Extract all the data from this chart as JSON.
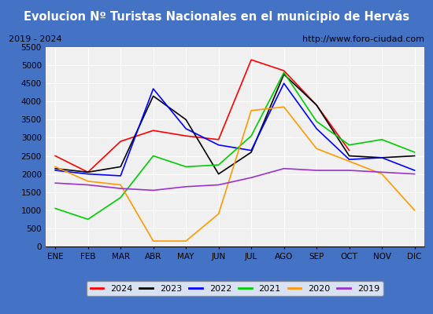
{
  "title": "Evolucion Nº Turistas Nacionales en el municipio de Hervás",
  "subtitle_left": "2019 - 2024",
  "subtitle_right": "http://www.foro-ciudad.com",
  "months": [
    "ENE",
    "FEB",
    "MAR",
    "ABR",
    "MAY",
    "JUN",
    "JUL",
    "AGO",
    "SEP",
    "OCT",
    "NOV",
    "DIC"
  ],
  "ylim": [
    0,
    5500
  ],
  "yticks": [
    0,
    500,
    1000,
    1500,
    2000,
    2500,
    3000,
    3500,
    4000,
    4500,
    5000,
    5500
  ],
  "series": {
    "2024": {
      "color": "#ff0000",
      "values": [
        2500,
        2050,
        2900,
        3200,
        3050,
        2950,
        5150,
        4850,
        3900,
        2650,
        null,
        null
      ]
    },
    "2023": {
      "color": "#000000",
      "values": [
        2150,
        2050,
        2200,
        4150,
        3500,
        2000,
        2600,
        4750,
        3900,
        2500,
        2450,
        2500
      ]
    },
    "2022": {
      "color": "#0000ff",
      "values": [
        2100,
        2000,
        1950,
        4350,
        3250,
        2800,
        2650,
        4500,
        3250,
        2400,
        2450,
        2100
      ]
    },
    "2021": {
      "color": "#00cc00",
      "values": [
        1050,
        750,
        1350,
        2500,
        2200,
        2250,
        3050,
        4800,
        3450,
        2800,
        2950,
        2600
      ]
    },
    "2020": {
      "color": "#ff9900",
      "values": [
        2200,
        1800,
        1700,
        150,
        150,
        900,
        3750,
        3850,
        2700,
        2350,
        2000,
        1000
      ]
    },
    "2019": {
      "color": "#9933cc",
      "values": [
        1750,
        1700,
        1600,
        1550,
        1650,
        1700,
        1900,
        2150,
        2100,
        2100,
        2050,
        2000
      ]
    }
  },
  "title_bg": "#4472c4",
  "title_color": "#ffffff",
  "plot_bg": "#f0f0f0",
  "grid_color": "#ffffff",
  "legend_order": [
    "2024",
    "2023",
    "2022",
    "2021",
    "2020",
    "2019"
  ]
}
